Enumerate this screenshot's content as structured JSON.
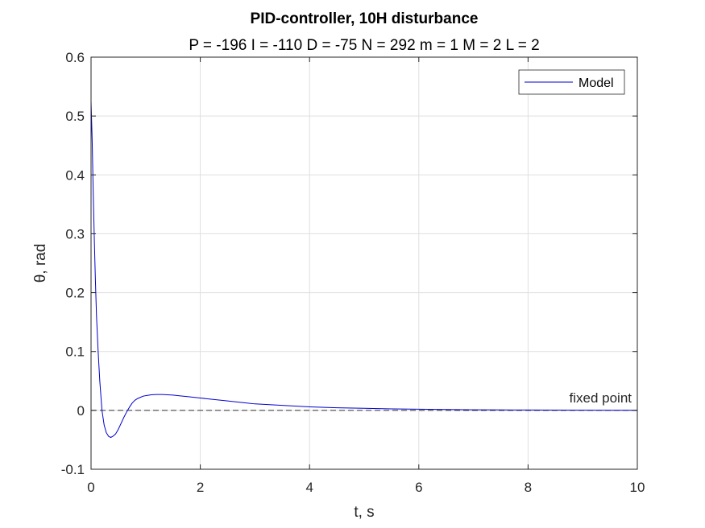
{
  "chart_data": {
    "type": "line",
    "title": "PID-controller, 10H disturbance",
    "subtitle": "P = -196 I = -110 D = -75 N = 292 m = 1 M = 2 L = 2",
    "xlabel": "t, s",
    "ylabel": "θ, rad",
    "xlim": [
      0,
      10
    ],
    "ylim": [
      -0.1,
      0.6
    ],
    "xticks": [
      0,
      2,
      4,
      6,
      8,
      10
    ],
    "yticks": [
      -0.1,
      0,
      0.1,
      0.2,
      0.3,
      0.4,
      0.5,
      0.6
    ],
    "xtick_labels": [
      "0",
      "2",
      "4",
      "6",
      "8",
      "10"
    ],
    "ytick_labels": [
      "-0.1",
      "0",
      "0.1",
      "0.2",
      "0.3",
      "0.4",
      "0.5",
      "0.6"
    ],
    "grid": true,
    "legend": {
      "position": "top-right",
      "entries": [
        "Model"
      ]
    },
    "series": [
      {
        "name": "Model",
        "color": "#0000cc",
        "x": [
          0,
          0.02,
          0.04,
          0.06,
          0.08,
          0.1,
          0.13,
          0.16,
          0.2,
          0.24,
          0.28,
          0.32,
          0.36,
          0.4,
          0.45,
          0.5,
          0.55,
          0.6,
          0.65,
          0.7,
          0.75,
          0.8,
          0.85,
          0.9,
          0.95,
          1.0,
          1.1,
          1.2,
          1.3,
          1.4,
          1.5,
          1.6,
          1.8,
          2.0,
          2.2,
          2.5,
          2.8,
          3.0,
          3.5,
          4.0,
          4.5,
          5.0,
          5.5,
          6.0,
          6.5,
          7.0,
          7.5,
          8.0,
          8.5,
          9.0,
          9.5,
          10.0
        ],
        "y": [
          0.525,
          0.46,
          0.37,
          0.29,
          0.22,
          0.16,
          0.1,
          0.05,
          0.0,
          -0.025,
          -0.038,
          -0.044,
          -0.046,
          -0.044,
          -0.04,
          -0.032,
          -0.022,
          -0.012,
          -0.003,
          0.005,
          0.012,
          0.017,
          0.02,
          0.022,
          0.024,
          0.025,
          0.0265,
          0.027,
          0.027,
          0.0265,
          0.026,
          0.025,
          0.023,
          0.021,
          0.019,
          0.016,
          0.013,
          0.011,
          0.0085,
          0.006,
          0.0045,
          0.0035,
          0.0025,
          0.002,
          0.0015,
          0.001,
          0.0008,
          0.0006,
          0.0004,
          0.0003,
          0.0002,
          0.0001
        ]
      }
    ],
    "reference_line": {
      "y": 0,
      "style": "dashed",
      "color": "#333333",
      "label": "fixed point"
    },
    "colors": {
      "grid": "#dfdfdf",
      "axis": "#262626",
      "line": "#0000cc"
    }
  }
}
